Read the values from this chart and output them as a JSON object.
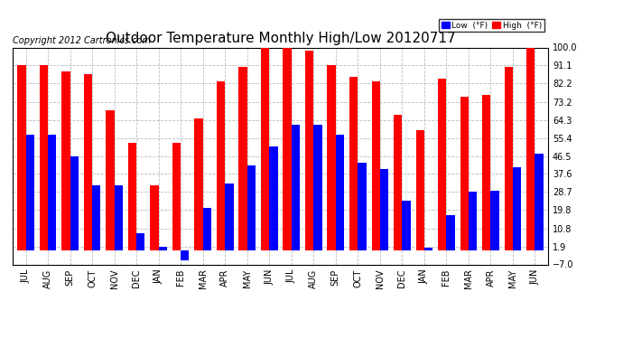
{
  "title": "Outdoor Temperature Monthly High/Low 20120717",
  "copyright": "Copyright 2012 Cartronics.com",
  "legend_low": "Low  (°F)",
  "legend_high": "High  (°F)",
  "months": [
    "JUL",
    "AUG",
    "SEP",
    "OCT",
    "NOV",
    "DEC",
    "JAN",
    "FEB",
    "MAR",
    "APR",
    "MAY",
    "JUN",
    "JUL",
    "AUG",
    "SEP",
    "OCT",
    "NOV",
    "DEC",
    "JAN",
    "FEB",
    "MAR",
    "APR",
    "MAY",
    "JUN"
  ],
  "high": [
    91.1,
    91.1,
    88.0,
    87.0,
    68.8,
    53.0,
    32.0,
    53.1,
    65.2,
    83.5,
    90.2,
    101.3,
    102.0,
    98.5,
    91.1,
    85.5,
    83.5,
    67.0,
    59.0,
    84.5,
    75.5,
    76.5,
    90.5,
    100.0
  ],
  "low": [
    57.0,
    57.0,
    46.5,
    32.0,
    32.0,
    8.5,
    1.9,
    -5.0,
    20.8,
    32.8,
    42.0,
    51.0,
    62.0,
    62.0,
    57.0,
    43.0,
    40.0,
    24.5,
    1.4,
    17.5,
    29.0,
    29.5,
    41.0,
    47.5
  ],
  "bar_width": 0.38,
  "ylim": [
    -7.0,
    100.0
  ],
  "yticks": [
    100.0,
    91.1,
    82.2,
    73.2,
    64.3,
    55.4,
    46.5,
    37.6,
    28.7,
    19.8,
    10.8,
    1.9,
    -7.0
  ],
  "color_low": "#0000ff",
  "color_high": "#ff0000",
  "bg_color": "#ffffff",
  "grid_color": "#bbbbbb",
  "title_fontsize": 11,
  "tick_fontsize": 7,
  "copyright_fontsize": 7
}
